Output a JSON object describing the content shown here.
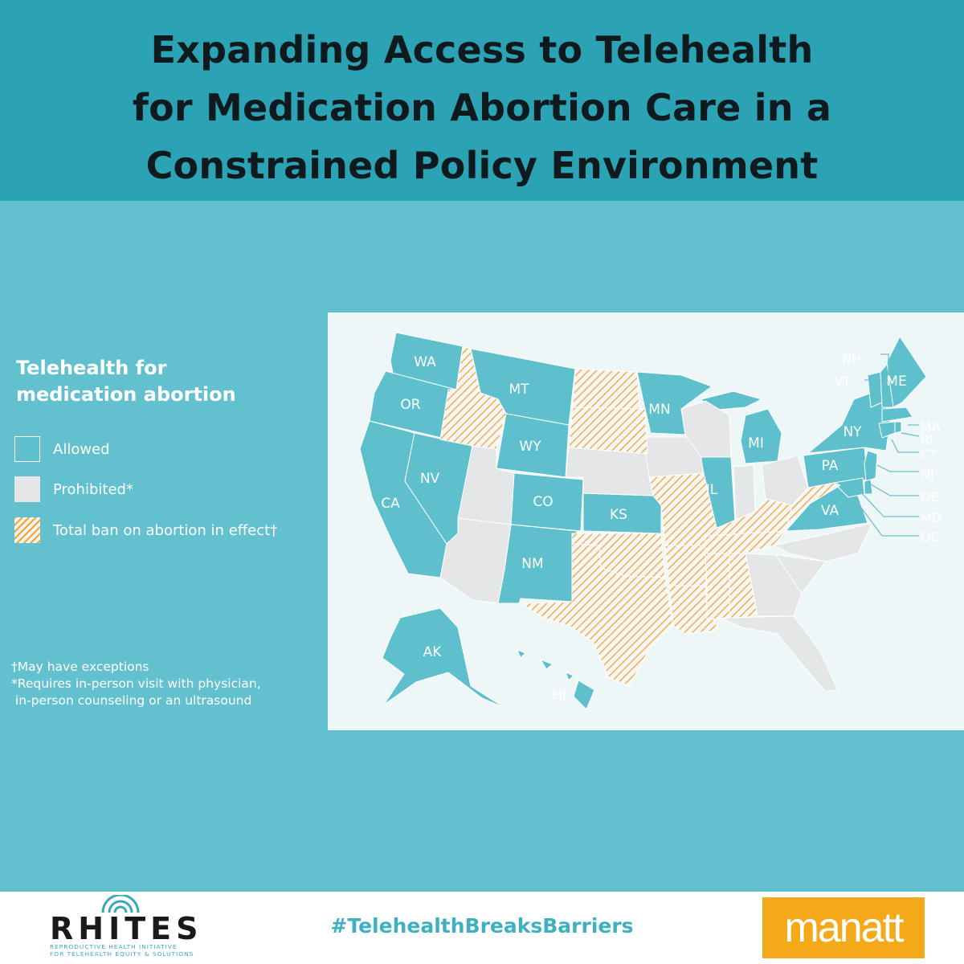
{
  "title_lines": [
    "Expanding Access to Telehealth",
    "for Medication Abortion Care in a",
    "Constrained Policy Environment"
  ],
  "legend": {
    "title_lines": [
      "Telehealth for",
      "medication abortion"
    ],
    "items": [
      {
        "key": "allowed",
        "label": "Allowed"
      },
      {
        "key": "prohibited",
        "label": "Prohibited*"
      },
      {
        "key": "ban",
        "label": "Total ban on abortion in effect†"
      }
    ]
  },
  "notes": [
    "†May have exceptions",
    "*Requires in-person visit with physician,",
    " in-person counseling or an ultrasound"
  ],
  "colors": {
    "allowed": "#5fc0cd",
    "prohibited": "#e5e6e8",
    "ban_stripe": "#f2a431",
    "header": "#2ba3b5",
    "background": "#63c0ce",
    "manatt": "#f4a91b"
  },
  "states": {
    "allowed": [
      "WA",
      "OR",
      "CA",
      "NV",
      "MT",
      "WY",
      "CO",
      "NM",
      "KS",
      "MN",
      "IL",
      "MI",
      "PA",
      "NY",
      "VA",
      "AK",
      "HI",
      "ME",
      "NH",
      "VT",
      "MA",
      "RI",
      "CT",
      "NJ",
      "DE",
      "MD",
      "DC"
    ],
    "prohibited": [
      "ID?",
      "UT",
      "AZ",
      "NE",
      "IA",
      "WI",
      "OH",
      "NC",
      "SC",
      "GA",
      "FL",
      "IN?"
    ],
    "ban": [
      "ID",
      "ND",
      "SD",
      "TX",
      "OK",
      "LA",
      "MO",
      "AR",
      "MS",
      "AL",
      "TN",
      "KY",
      "WV"
    ]
  },
  "map_labels": {
    "WA": "WA",
    "OR": "OR",
    "CA": "CA",
    "NV": "NV",
    "MT": "MT",
    "WY": "WY",
    "CO": "CO",
    "NM": "NM",
    "KS": "KS",
    "MN": "MN",
    "IL": "IL",
    "MI": "MI",
    "PA": "PA",
    "NY": "NY",
    "VA": "VA",
    "AK": "AK",
    "HI": "HI",
    "ME": "ME",
    "NH": "NH",
    "VT": "VT",
    "MA": "MA",
    "RI": "RI",
    "CT": "CT",
    "NJ": "NJ",
    "DE": "DE",
    "MD": "MD",
    "DC": "DC"
  },
  "footer": {
    "logo_word": "RHITES",
    "logo_sub": [
      "REPRODUCTIVE HEALTH INITIATIVE",
      "FOR TELEHEALTH EQUITY & SOLUTIONS"
    ],
    "hashtag": "#TelehealthBreaksBarriers",
    "partner": "manatt"
  }
}
